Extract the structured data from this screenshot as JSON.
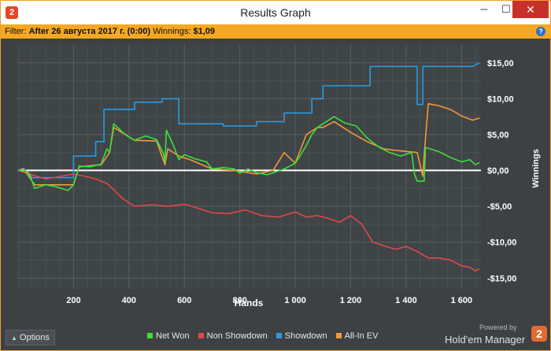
{
  "window": {
    "title": "Results Graph",
    "app_icon_label": "2",
    "minimize_label": "─",
    "maximize_label": "☐",
    "close_label": "✕"
  },
  "filter": {
    "prefix": "Filter:",
    "value": "After 26 августа 2017 г. (0:00)",
    "winnings_label": "Winnings:",
    "winnings_value": "$1,09",
    "help_label": "?"
  },
  "footer": {
    "options_label": "Options",
    "options_icon": "triangle-up-icon",
    "powered_by": "Powered by",
    "brand_name": "Hold'em Manager",
    "brand_logo": "2"
  },
  "colors": {
    "background": "#3d4144",
    "grid": "#53585c",
    "accent": "#f6a823",
    "close_button": "#c7302a",
    "zero_line": "#ffffff"
  },
  "chart_data": {
    "type": "line",
    "xlabel": "Hands",
    "ylabel": "Winnings",
    "xlim": [
      0,
      1670
    ],
    "ylim": [
      -16.5,
      17.5
    ],
    "x_ticks": [
      200,
      400,
      600,
      800,
      1000,
      1200,
      1400,
      1600
    ],
    "x_tick_labels": [
      "200",
      "400",
      "600",
      "800",
      "1 000",
      "1 200",
      "1 400",
      "1 600"
    ],
    "y_ticks": [
      15,
      10,
      5,
      0,
      -5,
      -10,
      -15
    ],
    "y_tick_labels": [
      "$15,00",
      "$10,00",
      "$5,00",
      "$0,00",
      "-$5,00",
      "-$10,00",
      "-$15,00"
    ],
    "grid": true,
    "legend_position": "bottom",
    "series": [
      {
        "name": "Net Won",
        "color": "#3ee03a",
        "points": [
          [
            0,
            0
          ],
          [
            20,
            0.1
          ],
          [
            40,
            -0.4
          ],
          [
            60,
            -2.5
          ],
          [
            100,
            -2
          ],
          [
            140,
            -2.3
          ],
          [
            180,
            -2.8
          ],
          [
            200,
            -2
          ],
          [
            220,
            0.6
          ],
          [
            260,
            0.5
          ],
          [
            300,
            0.9
          ],
          [
            320,
            3
          ],
          [
            330,
            2.5
          ],
          [
            345,
            6.5
          ],
          [
            380,
            5.2
          ],
          [
            420,
            4.2
          ],
          [
            460,
            4.8
          ],
          [
            500,
            4.3
          ],
          [
            525,
            2.3
          ],
          [
            530,
            1.2
          ],
          [
            535,
            5.6
          ],
          [
            560,
            3.5
          ],
          [
            580,
            1.5
          ],
          [
            600,
            2.2
          ],
          [
            640,
            1.6
          ],
          [
            680,
            1.2
          ],
          [
            700,
            0.2
          ],
          [
            740,
            0.4
          ],
          [
            780,
            0.2
          ],
          [
            800,
            -0.4
          ],
          [
            830,
            0.2
          ],
          [
            860,
            -0.3
          ],
          [
            900,
            -0.6
          ],
          [
            960,
            0.2
          ],
          [
            1000,
            1
          ],
          [
            1020,
            2.2
          ],
          [
            1040,
            3.5
          ],
          [
            1060,
            5
          ],
          [
            1080,
            6
          ],
          [
            1100,
            6.5
          ],
          [
            1140,
            7.5
          ],
          [
            1180,
            6.6
          ],
          [
            1220,
            6.2
          ],
          [
            1260,
            4.5
          ],
          [
            1300,
            3.3
          ],
          [
            1340,
            2.5
          ],
          [
            1380,
            2
          ],
          [
            1420,
            2.5
          ],
          [
            1430,
            -0.5
          ],
          [
            1440,
            -1.5
          ],
          [
            1465,
            -1.5
          ],
          [
            1470,
            3.2
          ],
          [
            1520,
            2.6
          ],
          [
            1560,
            1.8
          ],
          [
            1600,
            1.2
          ],
          [
            1630,
            1.5
          ],
          [
            1650,
            0.8
          ],
          [
            1665,
            1.09
          ]
        ]
      },
      {
        "name": "Non Showdown",
        "color": "#e04848",
        "points": [
          [
            0,
            0
          ],
          [
            40,
            -0.5
          ],
          [
            100,
            -1.2
          ],
          [
            200,
            -0.5
          ],
          [
            240,
            -0.8
          ],
          [
            280,
            -1.2
          ],
          [
            320,
            -1.8
          ],
          [
            340,
            -2.5
          ],
          [
            380,
            -4
          ],
          [
            420,
            -5
          ],
          [
            480,
            -4.8
          ],
          [
            540,
            -5
          ],
          [
            600,
            -4.7
          ],
          [
            660,
            -5.4
          ],
          [
            700,
            -5.9
          ],
          [
            760,
            -6
          ],
          [
            820,
            -5.5
          ],
          [
            880,
            -6.3
          ],
          [
            940,
            -6.5
          ],
          [
            1000,
            -5.8
          ],
          [
            1040,
            -6.5
          ],
          [
            1080,
            -6.3
          ],
          [
            1120,
            -6.7
          ],
          [
            1160,
            -7.2
          ],
          [
            1200,
            -6.3
          ],
          [
            1240,
            -7.5
          ],
          [
            1280,
            -10
          ],
          [
            1320,
            -10.5
          ],
          [
            1360,
            -11
          ],
          [
            1400,
            -10.6
          ],
          [
            1440,
            -11.3
          ],
          [
            1480,
            -12.2
          ],
          [
            1520,
            -12.2
          ],
          [
            1560,
            -12.5
          ],
          [
            1600,
            -13.3
          ],
          [
            1630,
            -13.5
          ],
          [
            1650,
            -14
          ],
          [
            1665,
            -13.7
          ]
        ]
      },
      {
        "name": "Showdown",
        "color": "#2c9be0",
        "points": [
          [
            0,
            0
          ],
          [
            20,
            0.3
          ],
          [
            50,
            -1
          ],
          [
            200,
            -1
          ],
          [
            200,
            2
          ],
          [
            280,
            2
          ],
          [
            280,
            4
          ],
          [
            310,
            4
          ],
          [
            310,
            8.5
          ],
          [
            420,
            8.5
          ],
          [
            420,
            9.5
          ],
          [
            520,
            9.5
          ],
          [
            520,
            10
          ],
          [
            580,
            10
          ],
          [
            580,
            6.5
          ],
          [
            740,
            6.5
          ],
          [
            740,
            6.2
          ],
          [
            860,
            6.2
          ],
          [
            860,
            6.8
          ],
          [
            960,
            6.8
          ],
          [
            960,
            8
          ],
          [
            1060,
            8
          ],
          [
            1060,
            10
          ],
          [
            1100,
            10
          ],
          [
            1100,
            11.8
          ],
          [
            1270,
            11.8
          ],
          [
            1270,
            14.5
          ],
          [
            1440,
            14.5
          ],
          [
            1440,
            9.2
          ],
          [
            1460,
            9.2
          ],
          [
            1460,
            14.5
          ],
          [
            1640,
            14.5
          ],
          [
            1665,
            15
          ]
        ]
      },
      {
        "name": "All-In EV",
        "color": "#f09a3a",
        "points": [
          [
            0,
            0
          ],
          [
            20,
            0.2
          ],
          [
            60,
            -2
          ],
          [
            200,
            -2
          ],
          [
            220,
            0.5
          ],
          [
            300,
            0.8
          ],
          [
            330,
            2.5
          ],
          [
            345,
            6
          ],
          [
            420,
            4.2
          ],
          [
            500,
            4.1
          ],
          [
            530,
            0.8
          ],
          [
            540,
            3
          ],
          [
            580,
            2
          ],
          [
            620,
            1.5
          ],
          [
            700,
            0.2
          ],
          [
            780,
            0
          ],
          [
            860,
            -0.5
          ],
          [
            920,
            0
          ],
          [
            960,
            2.5
          ],
          [
            1000,
            1
          ],
          [
            1040,
            5
          ],
          [
            1080,
            6
          ],
          [
            1100,
            6
          ],
          [
            1140,
            6.8
          ],
          [
            1200,
            5.3
          ],
          [
            1260,
            4
          ],
          [
            1320,
            3
          ],
          [
            1360,
            2.8
          ],
          [
            1440,
            2.5
          ],
          [
            1460,
            -0.8
          ],
          [
            1465,
            2
          ],
          [
            1480,
            9.3
          ],
          [
            1520,
            9
          ],
          [
            1560,
            8.5
          ],
          [
            1600,
            7.6
          ],
          [
            1640,
            7
          ],
          [
            1665,
            7.3
          ]
        ]
      }
    ]
  }
}
